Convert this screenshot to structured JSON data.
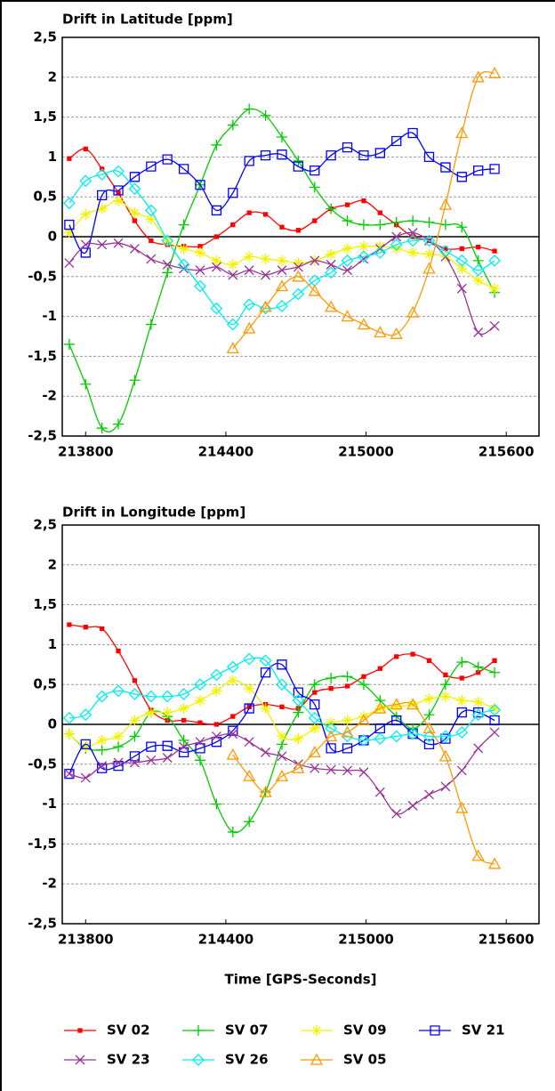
{
  "chart_data": [
    {
      "type": "line",
      "title": "Drift in Latitude [ppm]",
      "x": [
        213730,
        213800,
        213870,
        213940,
        214010,
        214080,
        214150,
        214220,
        214290,
        214360,
        214430,
        214500,
        214570,
        214640,
        214710,
        214780,
        214850,
        214920,
        214990,
        215060,
        215130,
        215200,
        215270,
        215340,
        215410,
        215480,
        215550
      ],
      "xlim": [
        213700,
        215740
      ],
      "xticks": [
        213800,
        214400,
        215000,
        215600
      ],
      "ylim": [
        -2.5,
        2.5
      ],
      "yticks": [
        {
          "value": 2.5,
          "label": "2,5"
        },
        2,
        {
          "value": 1.5,
          "label": "1,5"
        },
        1,
        {
          "value": 0.5,
          "label": "0,5"
        },
        0,
        {
          "value": -0.5,
          "label": "-0,5"
        },
        -1,
        {
          "value": -1.5,
          "label": "-1,5"
        },
        -2,
        {
          "value": -2.5,
          "label": "-2,5"
        }
      ],
      "grid": true,
      "series": [
        {
          "color": "#ff0000",
          "marker": "dot",
          "values": [
            0.98,
            1.1,
            0.85,
            0.55,
            0.2,
            -0.05,
            -0.1,
            -0.12,
            -0.12,
            0.0,
            0.15,
            0.3,
            0.28,
            0.12,
            0.08,
            0.2,
            0.35,
            0.4,
            0.45,
            0.3,
            0.15,
            0.0,
            -0.05,
            -0.15,
            -0.15,
            -0.13,
            -0.18
          ]
        },
        {
          "color": "#00cc00",
          "marker": "plus",
          "values": [
            -1.35,
            -1.85,
            -2.4,
            -2.35,
            -1.8,
            -1.1,
            -0.45,
            0.15,
            0.65,
            1.15,
            1.4,
            1.6,
            1.52,
            1.25,
            0.95,
            0.62,
            0.35,
            0.2,
            0.15,
            0.15,
            0.18,
            0.2,
            0.18,
            0.15,
            0.12,
            -0.3,
            -0.7
          ]
        },
        {
          "color": "#f2f200",
          "marker": "star",
          "values": [
            0.05,
            0.28,
            0.35,
            0.45,
            0.3,
            0.22,
            -0.05,
            -0.15,
            -0.2,
            -0.3,
            -0.35,
            -0.25,
            -0.28,
            -0.3,
            -0.33,
            -0.3,
            -0.22,
            -0.15,
            -0.12,
            -0.12,
            -0.15,
            -0.2,
            -0.22,
            -0.25,
            -0.4,
            -0.55,
            -0.65
          ]
        },
        {
          "color": "#0000ff",
          "marker": "square",
          "values": [
            0.15,
            -0.2,
            0.52,
            0.58,
            0.75,
            0.88,
            0.97,
            0.85,
            0.65,
            0.33,
            0.55,
            0.95,
            1.02,
            1.03,
            0.88,
            0.83,
            1.02,
            1.12,
            1.02,
            1.05,
            1.2,
            1.3,
            1.0,
            0.87,
            0.75,
            0.83,
            0.85
          ]
        },
        {
          "color": "#993399",
          "marker": "cross",
          "values": [
            -0.33,
            -0.1,
            -0.1,
            -0.08,
            -0.15,
            -0.28,
            -0.35,
            -0.4,
            -0.42,
            -0.38,
            -0.48,
            -0.42,
            -0.48,
            -0.42,
            -0.38,
            -0.3,
            -0.35,
            -0.42,
            -0.28,
            -0.15,
            0.0,
            0.05,
            -0.05,
            -0.25,
            -0.65,
            -1.2,
            -1.12
          ]
        },
        {
          "color": "#00eeee",
          "marker": "diamond",
          "values": [
            0.42,
            0.7,
            0.78,
            0.82,
            0.6,
            0.33,
            -0.05,
            -0.35,
            -0.62,
            -0.9,
            -1.1,
            -0.85,
            -0.9,
            -0.87,
            -0.72,
            -0.55,
            -0.45,
            -0.3,
            -0.25,
            -0.2,
            -0.1,
            -0.05,
            -0.05,
            -0.18,
            -0.3,
            -0.42,
            -0.3
          ]
        },
        {
          "color": "#ff9900",
          "marker": "triangle",
          "values": [
            null,
            null,
            null,
            null,
            null,
            null,
            null,
            null,
            null,
            null,
            -1.4,
            -1.15,
            -0.88,
            -0.62,
            -0.5,
            -0.68,
            -0.88,
            -1.0,
            -1.1,
            -1.2,
            -1.22,
            -0.95,
            -0.4,
            0.4,
            1.3,
            2.0,
            2.05
          ]
        }
      ]
    },
    {
      "type": "line",
      "title": "Drift in Longitude [ppm]",
      "xlabel": "Time [GPS-Seconds]",
      "legend": "bottom",
      "x": [
        213730,
        213800,
        213870,
        213940,
        214010,
        214080,
        214150,
        214220,
        214290,
        214360,
        214430,
        214500,
        214570,
        214640,
        214710,
        214780,
        214850,
        214920,
        214990,
        215060,
        215130,
        215200,
        215270,
        215340,
        215410,
        215480,
        215550
      ],
      "xlim": [
        213700,
        215740
      ],
      "xticks": [
        213800,
        214400,
        215000,
        215600
      ],
      "ylim": [
        -2.5,
        2.5
      ],
      "yticks": [
        {
          "value": 2.5,
          "label": "2,5"
        },
        2,
        {
          "value": 1.5,
          "label": "1,5"
        },
        1,
        {
          "value": 0.5,
          "label": "0,5"
        },
        0,
        {
          "value": -0.5,
          "label": "-0,5"
        },
        -1,
        {
          "value": -1.5,
          "label": "-1,5"
        },
        -2,
        {
          "value": -2.5,
          "label": "-2,5"
        }
      ],
      "grid": true,
      "series": [
        {
          "name": "SV 02",
          "color": "#ff0000",
          "marker": "dot",
          "values": [
            1.25,
            1.22,
            1.2,
            0.92,
            0.55,
            0.18,
            0.05,
            0.05,
            0.02,
            0.0,
            0.1,
            0.22,
            0.25,
            0.22,
            0.2,
            0.4,
            0.45,
            0.48,
            0.6,
            0.7,
            0.85,
            0.88,
            0.8,
            0.62,
            0.58,
            0.65,
            0.8
          ]
        },
        {
          "name": "SV 07",
          "color": "#00cc00",
          "marker": "plus",
          "values": [
            -0.12,
            -0.3,
            -0.32,
            -0.28,
            -0.15,
            0.15,
            0.1,
            -0.2,
            -0.45,
            -1.0,
            -1.35,
            -1.22,
            -0.85,
            -0.25,
            0.15,
            0.5,
            0.58,
            0.6,
            0.5,
            0.3,
            0.1,
            -0.05,
            0.12,
            0.5,
            0.78,
            0.72,
            0.65
          ]
        },
        {
          "name": "SV 09",
          "color": "#f2f200",
          "marker": "star",
          "values": [
            -0.12,
            -0.28,
            -0.2,
            -0.15,
            0.05,
            0.15,
            0.15,
            0.2,
            0.3,
            0.42,
            0.55,
            0.45,
            0.2,
            -0.15,
            -0.18,
            -0.05,
            0.02,
            0.05,
            0.1,
            0.2,
            0.22,
            0.25,
            0.32,
            0.35,
            0.3,
            0.28,
            0.2
          ]
        },
        {
          "name": "SV 21",
          "color": "#0000ff",
          "marker": "square",
          "values": [
            -0.62,
            -0.25,
            -0.55,
            -0.52,
            -0.4,
            -0.28,
            -0.27,
            -0.35,
            -0.3,
            -0.22,
            -0.08,
            0.2,
            0.65,
            0.75,
            0.4,
            0.25,
            -0.3,
            -0.3,
            -0.2,
            -0.05,
            0.05,
            -0.12,
            -0.25,
            -0.18,
            0.15,
            0.15,
            0.05
          ]
        },
        {
          "name": "SV 23",
          "color": "#993399",
          "marker": "cross",
          "values": [
            -0.62,
            -0.67,
            -0.52,
            -0.48,
            -0.48,
            -0.45,
            -0.42,
            -0.28,
            -0.22,
            -0.15,
            -0.12,
            -0.22,
            -0.35,
            -0.4,
            -0.5,
            -0.55,
            -0.57,
            -0.58,
            -0.6,
            -0.85,
            -1.12,
            -1.02,
            -0.88,
            -0.78,
            -0.58,
            -0.3,
            -0.1
          ]
        },
        {
          "name": "SV 26",
          "color": "#00eeee",
          "marker": "diamond",
          "values": [
            0.08,
            0.12,
            0.35,
            0.42,
            0.38,
            0.35,
            0.35,
            0.38,
            0.5,
            0.62,
            0.72,
            0.82,
            0.8,
            0.5,
            0.3,
            0.08,
            -0.05,
            -0.15,
            -0.2,
            -0.18,
            -0.15,
            -0.12,
            -0.15,
            -0.15,
            -0.1,
            0.12,
            0.18
          ]
        },
        {
          "name": "SV 05",
          "color": "#ff9900",
          "marker": "triangle",
          "values": [
            null,
            null,
            null,
            null,
            null,
            null,
            null,
            null,
            null,
            null,
            -0.38,
            -0.65,
            -0.85,
            -0.65,
            -0.55,
            -0.35,
            -0.15,
            -0.1,
            0.05,
            0.2,
            0.25,
            0.25,
            -0.05,
            -0.4,
            -1.05,
            -1.65,
            -1.75
          ]
        }
      ]
    }
  ]
}
